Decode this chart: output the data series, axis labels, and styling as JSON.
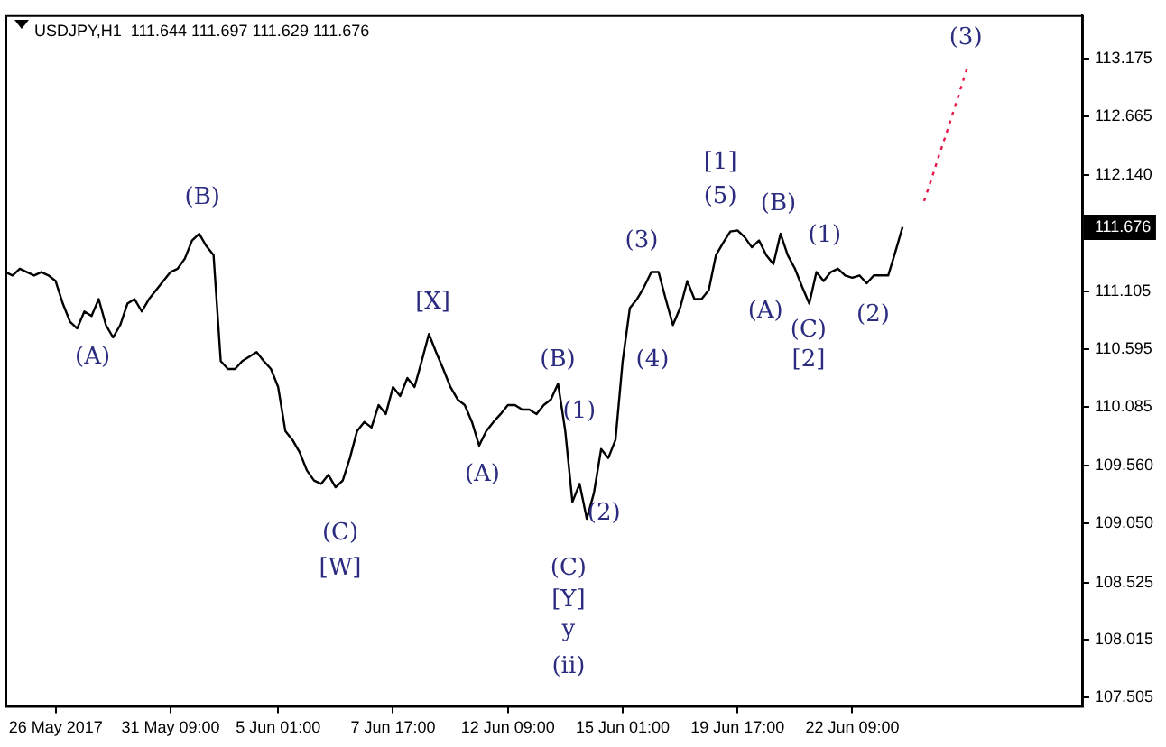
{
  "chart_data": {
    "type": "line",
    "title": "USDJPY,H1  111.644 111.697 111.629 111.676",
    "categories": [
      null,
      null,
      null,
      null,
      null,
      null,
      null,
      "26 May 2017",
      null,
      null,
      null,
      null,
      null,
      null,
      null,
      null,
      null,
      null,
      null,
      null,
      null,
      null,
      null,
      "31 May 09:00",
      null,
      null,
      null,
      null,
      null,
      null,
      null,
      null,
      null,
      null,
      null,
      null,
      null,
      null,
      "5 Jun 01:00",
      null,
      null,
      null,
      null,
      null,
      null,
      null,
      null,
      null,
      null,
      null,
      null,
      null,
      null,
      null,
      "7 Jun 17:00",
      null,
      null,
      null,
      null,
      null,
      null,
      null,
      null,
      null,
      null,
      null,
      null,
      null,
      null,
      null,
      "12 Jun 09:00",
      null,
      null,
      null,
      null,
      null,
      null,
      null,
      null,
      null,
      null,
      null,
      null,
      null,
      null,
      null,
      "15 Jun 01:00",
      null,
      null,
      null,
      null,
      null,
      null,
      null,
      null,
      null,
      null,
      null,
      null,
      null,
      null,
      null,
      "19 Jun 17:00",
      null,
      null,
      null,
      null,
      null,
      null,
      null,
      null,
      null,
      null,
      null,
      null,
      null,
      null,
      null,
      "22 Jun 09:00",
      null,
      null,
      null,
      null,
      null,
      null,
      null,
      null,
      null,
      null,
      null,
      null,
      null,
      null,
      null,
      null,
      null,
      null,
      null,
      null,
      null,
      null,
      null,
      null,
      null,
      null,
      null,
      null,
      null,
      null,
      null,
      null
    ],
    "series": [
      {
        "color": "#000000",
        "values": [
          111.28,
          111.25,
          111.31,
          111.28,
          111.25,
          111.28,
          111.25,
          111.2,
          111.0,
          110.84,
          110.78,
          110.93,
          110.89,
          111.04,
          110.81,
          110.7,
          110.81,
          111.0,
          111.04,
          110.93,
          111.04,
          111.12,
          111.2,
          111.28,
          111.31,
          111.4,
          111.56,
          111.62,
          111.51,
          111.43,
          110.49,
          110.42,
          110.42,
          110.49,
          110.53,
          110.57,
          110.49,
          110.42,
          110.26,
          109.87,
          109.79,
          109.68,
          109.52,
          109.43,
          109.4,
          109.48,
          109.37,
          109.43,
          109.63,
          109.87,
          109.95,
          109.9,
          110.1,
          110.02,
          110.26,
          110.18,
          110.34,
          110.26,
          110.49,
          110.73,
          110.57,
          110.42,
          110.26,
          110.15,
          110.1,
          109.95,
          109.74,
          109.87,
          109.95,
          110.02,
          110.1,
          110.1,
          110.06,
          110.06,
          110.02,
          110.1,
          110.15,
          110.29,
          109.87,
          109.24,
          109.4,
          109.09,
          109.32,
          109.71,
          109.63,
          109.79,
          110.49,
          110.96,
          111.04,
          111.15,
          111.28,
          111.28,
          111.04,
          110.81,
          110.96,
          111.2,
          111.04,
          111.04,
          111.12,
          111.43,
          111.54,
          111.64,
          111.65,
          111.59,
          111.5,
          111.56,
          111.43,
          111.35,
          111.62,
          111.43,
          111.31,
          111.15,
          111.0,
          111.28,
          111.2,
          111.28,
          111.31,
          111.25,
          111.23,
          111.25,
          111.18,
          111.25,
          111.25,
          111.25,
          111.46,
          111.68,
          null,
          null,
          null,
          null,
          null,
          null,
          null,
          null,
          null,
          null,
          null,
          null,
          null,
          null,
          null,
          null,
          null,
          null,
          null,
          null,
          null,
          null,
          null,
          null,
          null
        ]
      },
      {
        "color": "#e8174a",
        "line_style": "dotted",
        "values": [
          null,
          null,
          null,
          null,
          null,
          null,
          null,
          null,
          null,
          null,
          null,
          null,
          null,
          null,
          null,
          null,
          null,
          null,
          null,
          null,
          null,
          null,
          null,
          null,
          null,
          null,
          null,
          null,
          null,
          null,
          null,
          null,
          null,
          null,
          null,
          null,
          null,
          null,
          null,
          null,
          null,
          null,
          null,
          null,
          null,
          null,
          null,
          null,
          null,
          null,
          null,
          null,
          null,
          null,
          null,
          null,
          null,
          null,
          null,
          null,
          null,
          null,
          null,
          null,
          null,
          null,
          null,
          null,
          null,
          null,
          null,
          null,
          null,
          null,
          null,
          null,
          null,
          null,
          null,
          null,
          null,
          null,
          null,
          null,
          null,
          null,
          null,
          null,
          null,
          null,
          null,
          null,
          null,
          null,
          null,
          null,
          null,
          null,
          null,
          null,
          null,
          null,
          null,
          null,
          null,
          null,
          null,
          null,
          null,
          null,
          null,
          null,
          null,
          null,
          null,
          null,
          null,
          null,
          null,
          null,
          null,
          null,
          null,
          null,
          null,
          null,
          null,
          null,
          111.91,
          112.1,
          112.3,
          112.49,
          112.69,
          112.89,
          113.09,
          null,
          null,
          null,
          null,
          null,
          null,
          null,
          null,
          null,
          null,
          null,
          null,
          null,
          null,
          null,
          null
        ]
      }
    ],
    "ylim": [
      107.43,
      113.56
    ],
    "yticks": [
      107.505,
      108.015,
      108.525,
      {
        "value": 109.05,
        "label": "109.050"
      },
      {
        "value": 109.56,
        "label": "109.560"
      },
      110.085,
      110.595,
      111.105,
      111.676,
      {
        "value": 112.14,
        "label": "112.140"
      },
      112.665,
      113.175
    ],
    "annotations": [
      "(A)",
      "(B)",
      "(C)",
      "[W]",
      "[X]",
      "(A)",
      "(B)",
      "(1)",
      "(2)",
      "(C)",
      "[Y]",
      "y",
      "(ii)",
      "(3)",
      "(4)",
      "[1]",
      "(5)",
      "(B)",
      "(A)",
      "(C)",
      "[2]",
      "(1)",
      "(2)",
      "(3)"
    ],
    "grid": false,
    "legend": false,
    "marker": "none",
    "line_style": "solid"
  }
}
